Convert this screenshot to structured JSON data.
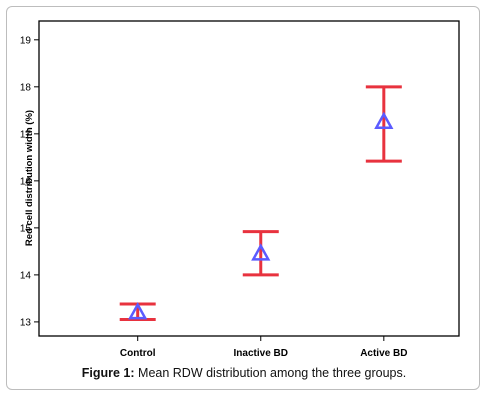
{
  "chart_data": {
    "type": "scatter",
    "subtype": "error-bar",
    "categories": [
      "Control",
      "Inactive BD",
      "Active BD"
    ],
    "series": [
      {
        "values": [
          13.2,
          14.45,
          17.25
        ],
        "lower": [
          13.05,
          14.0,
          16.42
        ],
        "upper": [
          13.38,
          14.92,
          18.0
        ]
      }
    ],
    "ylabel": "Red cell distribution width (%)",
    "xlabel": "",
    "ylim": [
      12.7,
      19.4
    ],
    "yticks": [
      13,
      14,
      15,
      16,
      17,
      18,
      19
    ],
    "grid": false,
    "colors": {
      "errorbar": "#e8323e",
      "marker": "#5b5bff",
      "axis": "#000000"
    }
  },
  "caption": {
    "label": "Figure 1:",
    "text": " Mean RDW distribution among the three groups."
  }
}
